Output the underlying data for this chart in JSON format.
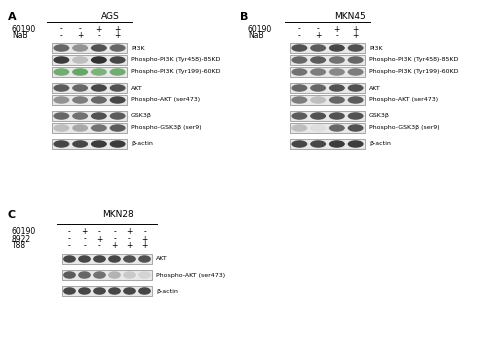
{
  "bg_color": "#ffffff",
  "fig_label_A": "A",
  "fig_label_B": "B",
  "fig_label_C": "C",
  "title_AGS": "AGS",
  "title_MKN45": "MKN45",
  "title_MKN28": "MKN28",
  "row_label_60190_A": "60190",
  "row_label_NaB_A": "NaB",
  "signs_A_60190": [
    "-",
    "-",
    "+",
    "+"
  ],
  "signs_A_NaB": [
    "-",
    "+",
    "-",
    "+"
  ],
  "row_label_60190_B": "60190",
  "row_label_NaB_B": "NaB",
  "signs_B_60190": [
    "-",
    "-",
    "+",
    "+"
  ],
  "signs_B_NaB": [
    "-",
    "+",
    "-",
    "+"
  ],
  "row_label_60190_C": "60190",
  "row_label_8922_C": "8922",
  "row_label_T88_C": "T88",
  "signs_C_60190": [
    "-",
    "+",
    "-",
    "-",
    "+",
    "-"
  ],
  "signs_C_8922": [
    "-",
    "-",
    "+",
    "-",
    "-",
    "+"
  ],
  "signs_C_T88": [
    "-",
    "-",
    "-",
    "+",
    "+",
    "+"
  ],
  "band_labels_A": [
    "PI3K",
    "Phospho-PI3K (Tyr458)-85KD",
    "Phospho-PI3K (Tyr199)-60KD",
    "AKT",
    "Phospho-AKT (ser473)",
    "GSK3β",
    "Phospho-GSK3β (ser9)",
    "β-actin"
  ],
  "band_labels_B": [
    "PI3K",
    "Phospho-PI3K (Tyr458)-85KD",
    "Phospho-PI3K (Tyr199)-60KD",
    "AKT",
    "Phospho-AKT (ser473)",
    "GSK3β",
    "Phospho-GSK3β (ser9)",
    "β-actin"
  ],
  "band_labels_C": [
    "AKT",
    "Phospho-AKT (ser473)",
    "β-actin"
  ],
  "font_size_signs": 5.5,
  "font_size_label": 8,
  "font_size_title": 6.5,
  "font_size_band_label": 4.5,
  "A_bands": [
    {
      "intensities": [
        0.7,
        0.5,
        0.8,
        0.7
      ],
      "color": "gray"
    },
    {
      "intensities": [
        0.9,
        0.3,
        0.95,
        0.85
      ],
      "color": "dark"
    },
    {
      "intensities": [
        0.6,
        0.7,
        0.5,
        0.6
      ],
      "color": "green"
    },
    {
      "intensities": [
        0.75,
        0.7,
        0.85,
        0.8
      ],
      "color": "gray"
    },
    {
      "intensities": [
        0.5,
        0.6,
        0.7,
        0.85
      ],
      "color": "gray"
    },
    {
      "intensities": [
        0.7,
        0.65,
        0.8,
        0.75
      ],
      "color": "gray"
    },
    {
      "intensities": [
        0.3,
        0.4,
        0.65,
        0.75
      ],
      "color": "gray"
    },
    {
      "intensities": [
        0.85,
        0.85,
        0.9,
        0.9
      ],
      "color": "gray"
    }
  ],
  "B_bands": [
    {
      "intensities": [
        0.8,
        0.75,
        0.85,
        0.8
      ],
      "color": "gray"
    },
    {
      "intensities": [
        0.7,
        0.75,
        0.65,
        0.7
      ],
      "color": "gray"
    },
    {
      "intensities": [
        0.65,
        0.6,
        0.55,
        0.6
      ],
      "color": "gray"
    },
    {
      "intensities": [
        0.7,
        0.7,
        0.8,
        0.8
      ],
      "color": "gray"
    },
    {
      "intensities": [
        0.6,
        0.3,
        0.7,
        0.75
      ],
      "color": "gray"
    },
    {
      "intensities": [
        0.75,
        0.8,
        0.8,
        0.8
      ],
      "color": "gray"
    },
    {
      "intensities": [
        0.3,
        0.15,
        0.7,
        0.8
      ],
      "color": "gray"
    },
    {
      "intensities": [
        0.85,
        0.85,
        0.9,
        0.9
      ],
      "color": "gray"
    }
  ],
  "C_bands": [
    {
      "intensities": [
        0.85,
        0.85,
        0.85,
        0.85,
        0.8,
        0.8
      ],
      "color": "gray"
    },
    {
      "intensities": [
        0.75,
        0.7,
        0.65,
        0.35,
        0.25,
        0.2
      ],
      "color": "gray"
    },
    {
      "intensities": [
        0.85,
        0.85,
        0.85,
        0.85,
        0.85,
        0.85
      ],
      "color": "gray"
    }
  ],
  "A_groups": [
    [
      0,
      1,
      2
    ],
    [
      3,
      4
    ],
    [
      5,
      6
    ],
    [
      7
    ]
  ],
  "B_groups": [
    [
      0,
      1,
      2
    ],
    [
      3,
      4
    ],
    [
      5,
      6
    ],
    [
      7
    ]
  ],
  "C_groups": [
    [
      0
    ],
    [
      1
    ],
    [
      2
    ]
  ]
}
